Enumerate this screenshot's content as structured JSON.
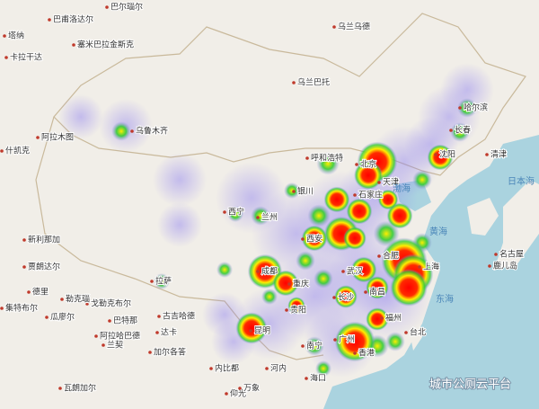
{
  "labels": [
    "巴尔瑙尔",
    "巴甫洛达尔",
    "塔纳",
    "塞米巴拉金斯克",
    "卡拉干达",
    "乌兰乌德",
    "乌兰巴托",
    "乌鲁木齐",
    "阿拉木图",
    "什凯克",
    "哈尔滨",
    "长春",
    "沈阳",
    "清津",
    "北京",
    "呼和浩特",
    "天津",
    "银川",
    "石家庄",
    "西宁",
    "兰州",
    "西安",
    "合肥",
    "上海",
    "成都",
    "重庆",
    "武汉",
    "南昌",
    "长沙",
    "拉萨",
    "德里",
    "贾朗达尔",
    "新利那加",
    "贵阳",
    "福州",
    "台北",
    "昆明",
    "南宁",
    "广州",
    "香港",
    "海口",
    "河内",
    "古吉哈德",
    "戈勒克布尔",
    "勒克瑙",
    "瓜廖尔",
    "集特布尔",
    "巴特那",
    "阿拉哈巴德",
    "达卡",
    "兰契",
    "加尔各答",
    "内比都",
    "仰光",
    "瓦朗加尔",
    "万象",
    "名古屋",
    "鹿儿岛"
  ],
  "seas": [
    "渤海",
    "黄海",
    "东海",
    "日本海"
  ],
  "watermark": "城市公厕云平台"
}
